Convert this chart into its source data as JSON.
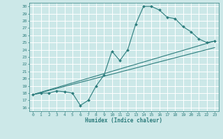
{
  "xlabel": "Humidex (Indice chaleur)",
  "bg_color": "#cce8e8",
  "line_color": "#2d7d7d",
  "grid_color": "#ffffff",
  "xlim": [
    -0.5,
    23.5
  ],
  "ylim": [
    15.5,
    30.5
  ],
  "xticks": [
    0,
    1,
    2,
    3,
    4,
    5,
    6,
    7,
    8,
    9,
    10,
    11,
    12,
    13,
    14,
    15,
    16,
    17,
    18,
    19,
    20,
    21,
    22,
    23
  ],
  "yticks": [
    16,
    17,
    18,
    19,
    20,
    21,
    22,
    23,
    24,
    25,
    26,
    27,
    28,
    29,
    30
  ],
  "series1_x": [
    0,
    1,
    2,
    3,
    4,
    5,
    6,
    7,
    8,
    9,
    10,
    11,
    12,
    13,
    14,
    15,
    16,
    17,
    18,
    19,
    20,
    21,
    22,
    23
  ],
  "series1_y": [
    17.8,
    18.0,
    18.0,
    18.3,
    18.2,
    18.0,
    16.3,
    17.0,
    19.0,
    20.5,
    23.8,
    22.5,
    24.0,
    27.5,
    30.0,
    30.0,
    29.5,
    28.5,
    28.3,
    27.2,
    26.5,
    25.5,
    25.0,
    25.2
  ],
  "series2_x": [
    0,
    23
  ],
  "series2_y": [
    17.8,
    25.2
  ],
  "series3_x": [
    0,
    23
  ],
  "series3_y": [
    17.8,
    24.3
  ]
}
